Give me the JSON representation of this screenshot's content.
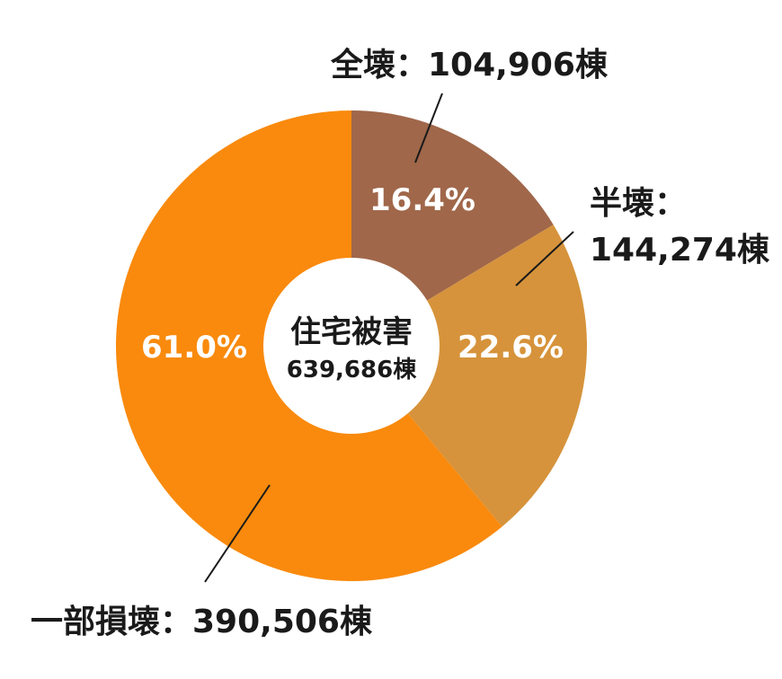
{
  "chart_data": {
    "type": "pie",
    "center_title": "住宅被害",
    "center_value": "639,686棟",
    "slices": [
      {
        "label": "全壊：104,906棟",
        "label_lines": [
          "全壊：104,906棟"
        ],
        "value": 104906,
        "percent": 16.4,
        "percent_label": "16.4%",
        "color": "#a0674a"
      },
      {
        "label": "半壊：144,274棟",
        "label_lines": [
          "半壊：",
          "144,274棟"
        ],
        "value": 144274,
        "percent": 22.6,
        "percent_label": "22.6%",
        "color": "#d6933b"
      },
      {
        "label": "一部損壊：390,506棟",
        "label_lines": [
          "一部損壊：390,506棟"
        ],
        "value": 390506,
        "percent": 61.0,
        "percent_label": "61.0%",
        "color": "#f98a0d"
      }
    ]
  }
}
